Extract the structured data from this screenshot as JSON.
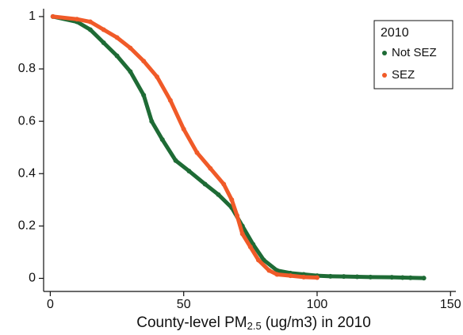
{
  "chart_data": {
    "type": "line",
    "xlabel": [
      "County-level PM",
      "2.5",
      "(ug/m3) in 2010"
    ],
    "xlim": [
      -2.5,
      152
    ],
    "ylim": [
      -0.05,
      1.03
    ],
    "xticks": [
      0,
      50,
      100,
      150
    ],
    "yticks": [
      0,
      0.2,
      0.4,
      0.6,
      0.8,
      1
    ],
    "legend_title": "2010",
    "legend_position": "top-right",
    "series": [
      {
        "name": "Not SEZ",
        "color": "#1e6b35",
        "x": [
          1,
          10,
          15,
          20,
          25,
          30,
          35,
          38,
          42,
          47,
          52,
          58,
          63,
          68,
          72,
          76,
          80,
          85,
          90,
          95,
          100,
          105,
          110,
          115,
          120,
          128,
          132,
          135,
          140
        ],
        "values": [
          1.0,
          0.98,
          0.95,
          0.9,
          0.85,
          0.79,
          0.7,
          0.6,
          0.53,
          0.45,
          0.41,
          0.36,
          0.32,
          0.27,
          0.2,
          0.13,
          0.07,
          0.03,
          0.02,
          0.015,
          0.01,
          0.008,
          0.007,
          0.006,
          0.005,
          0.004,
          0.003,
          0.002,
          0.001
        ]
      },
      {
        "name": "SEZ",
        "color": "#f05a28",
        "x": [
          1,
          10,
          15,
          20,
          25,
          30,
          35,
          40,
          45,
          50,
          55,
          60,
          65,
          68,
          70,
          72,
          75,
          78,
          82,
          85,
          90,
          95,
          100
        ],
        "values": [
          1.0,
          0.99,
          0.98,
          0.95,
          0.92,
          0.88,
          0.83,
          0.77,
          0.68,
          0.57,
          0.48,
          0.42,
          0.36,
          0.3,
          0.24,
          0.17,
          0.12,
          0.07,
          0.03,
          0.015,
          0.01,
          0.005,
          0.003
        ]
      }
    ]
  }
}
